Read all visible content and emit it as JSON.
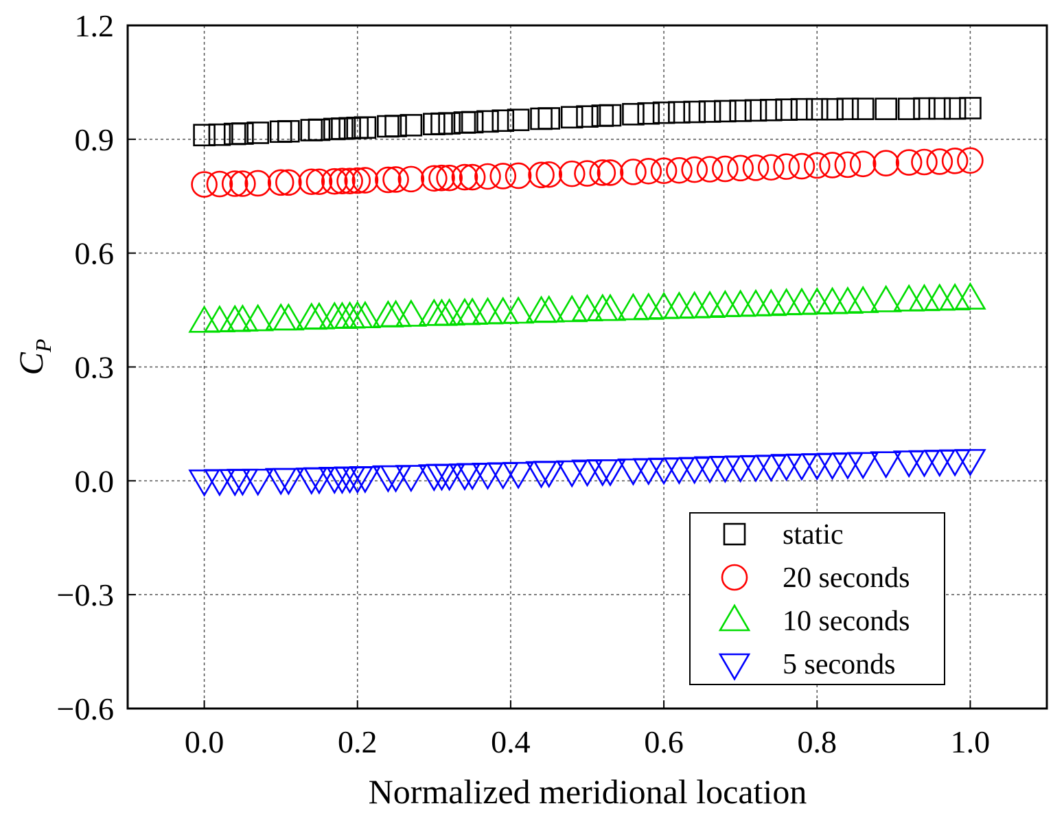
{
  "chart_data": {
    "type": "scatter",
    "xlabel": "Normalized meridional location",
    "ylabel": "C",
    "ylabel_sub": "P",
    "xlim": [
      -0.1,
      1.1
    ],
    "ylim": [
      -0.6,
      1.2
    ],
    "xticks": [
      0.0,
      0.2,
      0.4,
      0.6,
      0.8,
      1.0
    ],
    "yticks": [
      -0.6,
      -0.3,
      0.0,
      0.3,
      0.6,
      0.9,
      1.2
    ],
    "xtick_labels": [
      "0.0",
      "0.2",
      "0.4",
      "0.6",
      "0.8",
      "1.0"
    ],
    "ytick_labels": [
      "−0.6",
      "−0.3",
      "0.0",
      "0.3",
      "0.6",
      "0.9",
      "1.2"
    ],
    "grid": true,
    "legend_position": "bottom-right",
    "x": [
      0.0,
      0.02,
      0.04,
      0.05,
      0.07,
      0.1,
      0.11,
      0.14,
      0.15,
      0.17,
      0.18,
      0.19,
      0.2,
      0.21,
      0.24,
      0.25,
      0.27,
      0.3,
      0.31,
      0.32,
      0.34,
      0.35,
      0.37,
      0.39,
      0.41,
      0.44,
      0.45,
      0.48,
      0.5,
      0.52,
      0.53,
      0.56,
      0.58,
      0.6,
      0.62,
      0.64,
      0.66,
      0.68,
      0.7,
      0.72,
      0.74,
      0.76,
      0.78,
      0.8,
      0.82,
      0.84,
      0.86,
      0.89,
      0.92,
      0.94,
      0.96,
      0.98,
      1.0
    ],
    "series": [
      {
        "name": "static",
        "marker": "square",
        "color": "#000000",
        "values": [
          0.911,
          0.912,
          0.914,
          0.915,
          0.917,
          0.92,
          0.921,
          0.924,
          0.925,
          0.927,
          0.928,
          0.929,
          0.93,
          0.931,
          0.934,
          0.935,
          0.937,
          0.94,
          0.941,
          0.942,
          0.944,
          0.945,
          0.947,
          0.949,
          0.951,
          0.954,
          0.955,
          0.958,
          0.96,
          0.962,
          0.963,
          0.966,
          0.968,
          0.97,
          0.971,
          0.972,
          0.973,
          0.974,
          0.975,
          0.976,
          0.977,
          0.978,
          0.979,
          0.979,
          0.979,
          0.98,
          0.98,
          0.98,
          0.98,
          0.981,
          0.981,
          0.981,
          0.982
        ]
      },
      {
        "name": "20 seconds",
        "marker": "circle",
        "color": "#ff0000",
        "values": [
          0.781,
          0.782,
          0.783,
          0.783,
          0.784,
          0.786,
          0.786,
          0.788,
          0.788,
          0.789,
          0.79,
          0.79,
          0.791,
          0.792,
          0.793,
          0.794,
          0.795,
          0.797,
          0.798,
          0.798,
          0.8,
          0.8,
          0.802,
          0.803,
          0.804,
          0.806,
          0.807,
          0.809,
          0.81,
          0.812,
          0.812,
          0.814,
          0.816,
          0.817,
          0.818,
          0.82,
          0.821,
          0.822,
          0.824,
          0.825,
          0.826,
          0.828,
          0.829,
          0.831,
          0.832,
          0.833,
          0.835,
          0.837,
          0.839,
          0.84,
          0.841,
          0.843,
          0.844
        ]
      },
      {
        "name": "10 seconds",
        "marker": "triangle-up",
        "color": "#00dd00",
        "values": [
          0.418,
          0.419,
          0.42,
          0.421,
          0.422,
          0.424,
          0.424,
          0.426,
          0.427,
          0.428,
          0.428,
          0.429,
          0.43,
          0.43,
          0.432,
          0.433,
          0.434,
          0.436,
          0.436,
          0.437,
          0.438,
          0.439,
          0.44,
          0.441,
          0.442,
          0.444,
          0.445,
          0.446,
          0.448,
          0.449,
          0.449,
          0.451,
          0.452,
          0.454,
          0.455,
          0.456,
          0.457,
          0.459,
          0.46,
          0.461,
          0.462,
          0.464,
          0.465,
          0.466,
          0.467,
          0.468,
          0.47,
          0.472,
          0.474,
          0.475,
          0.476,
          0.477,
          0.479
        ]
      },
      {
        "name": "5 seconds",
        "marker": "triangle-down",
        "color": "#0000ff",
        "values": [
          0.002,
          0.003,
          0.003,
          0.004,
          0.004,
          0.006,
          0.006,
          0.007,
          0.008,
          0.009,
          0.009,
          0.01,
          0.01,
          0.011,
          0.013,
          0.013,
          0.014,
          0.016,
          0.017,
          0.017,
          0.018,
          0.019,
          0.02,
          0.021,
          0.022,
          0.024,
          0.025,
          0.026,
          0.028,
          0.029,
          0.029,
          0.031,
          0.032,
          0.033,
          0.034,
          0.035,
          0.037,
          0.038,
          0.039,
          0.04,
          0.041,
          0.043,
          0.044,
          0.045,
          0.046,
          0.047,
          0.048,
          0.05,
          0.052,
          0.053,
          0.054,
          0.055,
          0.056
        ]
      }
    ]
  }
}
